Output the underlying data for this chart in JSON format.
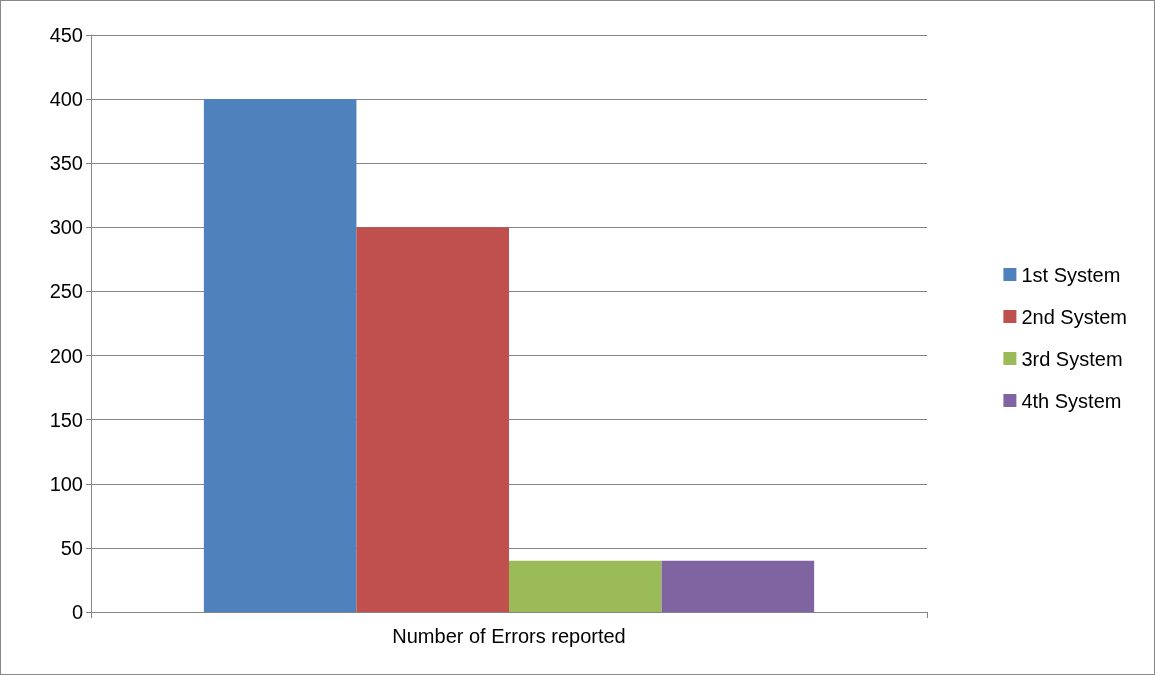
{
  "chart_data": {
    "type": "bar",
    "categories": [
      "Number of Errors reported"
    ],
    "series": [
      {
        "name": "1st System",
        "color": "#4f81bd",
        "values": [
          400
        ]
      },
      {
        "name": "2nd System",
        "color": "#c0504d",
        "values": [
          300
        ]
      },
      {
        "name": "3rd System",
        "color": "#9bbb59",
        "values": [
          40
        ]
      },
      {
        "name": "4th System",
        "color": "#8064a2",
        "values": [
          40
        ]
      }
    ],
    "ylim": [
      0,
      450
    ],
    "yticks": [
      0,
      50,
      100,
      150,
      200,
      250,
      300,
      350,
      400,
      450
    ],
    "grid": "y",
    "legend": "right"
  }
}
